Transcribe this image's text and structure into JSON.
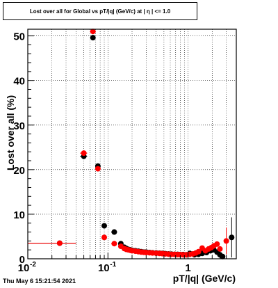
{
  "title": "Lost over all for Global vs pT/|q| (GeV/c) at | η | <= 1.0",
  "timestamp": "Thu May  6 15:21:54 2021",
  "colors": {
    "series_black": "#000000",
    "series_red": "#ff0000",
    "grid": "#000000",
    "frame": "#000000"
  },
  "chart_data": {
    "type": "scatter",
    "title": "Lost over all for Global vs pT/|q| (GeV/c) at | η | <= 1.0",
    "xlabel": "pT/|q| (GeV/c)",
    "ylabel": "Lost over all (%)",
    "xscale": "log",
    "xlim": [
      0.01,
      4.0
    ],
    "ylim": [
      0,
      51.5
    ],
    "grid": true,
    "x_ticks": [
      {
        "value": 0.01,
        "label": "10",
        "sup": "-2"
      },
      {
        "value": 0.1,
        "label": "10",
        "sup": "-1"
      },
      {
        "value": 1,
        "label": "1",
        "sup": ""
      }
    ],
    "y_ticks": [
      0,
      10,
      20,
      30,
      40,
      50
    ],
    "series": [
      {
        "color": "#000000",
        "points": [
          {
            "x": 0.025,
            "y": 3.5,
            "xlo": 0.01,
            "xhi": 0.04,
            "yerr": 0
          },
          {
            "x": 0.05,
            "y": 23.0,
            "xlo": 0.045,
            "xhi": 0.055,
            "yerr": 0.6
          },
          {
            "x": 0.065,
            "y": 49.6,
            "xlo": 0.06,
            "xhi": 0.07,
            "yerr": 0.6
          },
          {
            "x": 0.075,
            "y": 20.8,
            "xlo": 0.07,
            "xhi": 0.08,
            "yerr": 0.6
          },
          {
            "x": 0.09,
            "y": 7.4,
            "xlo": 0.085,
            "xhi": 0.095,
            "yerr": 0.4
          },
          {
            "x": 0.12,
            "y": 6.0,
            "xlo": 0.11,
            "xhi": 0.13,
            "yerr": 0.3
          },
          {
            "x": 0.145,
            "y": 3.4,
            "xlo": 0.14,
            "xhi": 0.15,
            "yerr": 0.2
          },
          {
            "x": 0.16,
            "y": 2.6
          },
          {
            "x": 0.17,
            "y": 2.3
          },
          {
            "x": 0.18,
            "y": 2.1
          },
          {
            "x": 0.19,
            "y": 2.0
          },
          {
            "x": 0.2,
            "y": 1.9
          },
          {
            "x": 0.22,
            "y": 1.8
          },
          {
            "x": 0.24,
            "y": 1.7
          },
          {
            "x": 0.26,
            "y": 1.6
          },
          {
            "x": 0.28,
            "y": 1.5
          },
          {
            "x": 0.3,
            "y": 1.5
          },
          {
            "x": 0.33,
            "y": 1.4
          },
          {
            "x": 0.36,
            "y": 1.35
          },
          {
            "x": 0.4,
            "y": 1.3
          },
          {
            "x": 0.44,
            "y": 1.25
          },
          {
            "x": 0.48,
            "y": 1.2
          },
          {
            "x": 0.52,
            "y": 1.15
          },
          {
            "x": 0.57,
            "y": 1.1
          },
          {
            "x": 0.62,
            "y": 1.05
          },
          {
            "x": 0.68,
            "y": 1.0
          },
          {
            "x": 0.74,
            "y": 1.0
          },
          {
            "x": 0.8,
            "y": 0.95
          },
          {
            "x": 0.87,
            "y": 0.95
          },
          {
            "x": 0.95,
            "y": 0.9
          },
          {
            "x": 1.05,
            "y": 1.2,
            "yerr": 0.5
          },
          {
            "x": 1.2,
            "y": 0.9
          },
          {
            "x": 1.35,
            "y": 1.0
          },
          {
            "x": 1.5,
            "y": 1.2
          },
          {
            "x": 1.7,
            "y": 1.4
          },
          {
            "x": 1.9,
            "y": 1.8
          },
          {
            "x": 2.1,
            "y": 2.0
          },
          {
            "x": 2.3,
            "y": 1.5
          },
          {
            "x": 2.5,
            "y": 0.9,
            "yerr": 0.8
          },
          {
            "x": 2.7,
            "y": 0.5
          },
          {
            "x": 3.5,
            "y": 4.8,
            "yerr": 4.5
          }
        ]
      },
      {
        "color": "#ff0000",
        "points": [
          {
            "x": 0.025,
            "y": 3.5,
            "xlo": 0.01,
            "xhi": 0.04,
            "yerr": 0
          },
          {
            "x": 0.05,
            "y": 23.7,
            "xlo": 0.045,
            "xhi": 0.055,
            "yerr": 0.6
          },
          {
            "x": 0.065,
            "y": 51.0,
            "xlo": 0.06,
            "xhi": 0.07,
            "yerr": 0.6
          },
          {
            "x": 0.075,
            "y": 20.2,
            "xlo": 0.07,
            "xhi": 0.08,
            "yerr": 0.6
          },
          {
            "x": 0.09,
            "y": 4.8,
            "xlo": 0.085,
            "xhi": 0.095,
            "yerr": 0.4
          },
          {
            "x": 0.12,
            "y": 3.4,
            "xlo": 0.11,
            "xhi": 0.13,
            "yerr": 0.3
          },
          {
            "x": 0.145,
            "y": 2.8,
            "xlo": 0.14,
            "xhi": 0.15,
            "yerr": 0.2
          },
          {
            "x": 0.16,
            "y": 2.3
          },
          {
            "x": 0.17,
            "y": 2.1
          },
          {
            "x": 0.18,
            "y": 2.0
          },
          {
            "x": 0.19,
            "y": 1.9
          },
          {
            "x": 0.2,
            "y": 1.8
          },
          {
            "x": 0.22,
            "y": 1.7
          },
          {
            "x": 0.24,
            "y": 1.6
          },
          {
            "x": 0.26,
            "y": 1.5
          },
          {
            "x": 0.28,
            "y": 1.45
          },
          {
            "x": 0.3,
            "y": 1.4
          },
          {
            "x": 0.33,
            "y": 1.35
          },
          {
            "x": 0.36,
            "y": 1.3
          },
          {
            "x": 0.4,
            "y": 1.25
          },
          {
            "x": 0.44,
            "y": 1.2
          },
          {
            "x": 0.48,
            "y": 1.15
          },
          {
            "x": 0.52,
            "y": 1.1
          },
          {
            "x": 0.57,
            "y": 1.05
          },
          {
            "x": 0.62,
            "y": 1.0
          },
          {
            "x": 0.68,
            "y": 1.0
          },
          {
            "x": 0.74,
            "y": 0.95
          },
          {
            "x": 0.8,
            "y": 0.95
          },
          {
            "x": 0.87,
            "y": 0.9
          },
          {
            "x": 0.95,
            "y": 0.9
          },
          {
            "x": 1.05,
            "y": 1.0
          },
          {
            "x": 1.15,
            "y": 1.1
          },
          {
            "x": 1.25,
            "y": 1.3
          },
          {
            "x": 1.35,
            "y": 1.6
          },
          {
            "x": 1.5,
            "y": 2.4
          },
          {
            "x": 1.65,
            "y": 1.8
          },
          {
            "x": 1.8,
            "y": 2.2
          },
          {
            "x": 1.95,
            "y": 2.5
          },
          {
            "x": 2.1,
            "y": 2.9
          },
          {
            "x": 2.3,
            "y": 3.3
          },
          {
            "x": 2.5,
            "y": 2.2
          },
          {
            "x": 3.0,
            "y": 4.0,
            "yerr": 3.0
          }
        ]
      }
    ]
  }
}
